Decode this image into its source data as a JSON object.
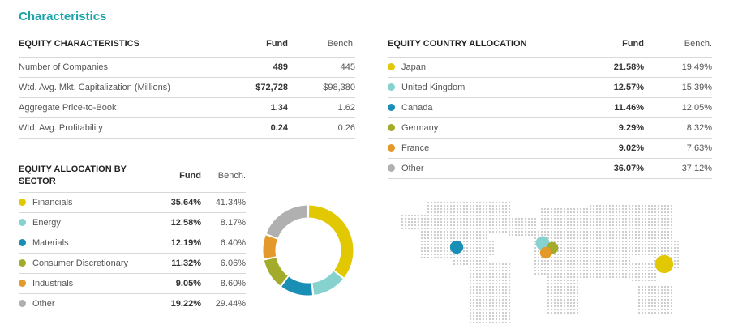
{
  "page_title": "Characteristics",
  "colors": {
    "accent": "#1ba3a8",
    "yellow": "#e2c800",
    "light_teal": "#86d2cf",
    "blue": "#1a8fb6",
    "olive": "#a3ab2b",
    "orange": "#e39a2a",
    "gray": "#b0b0b0"
  },
  "equity_characteristics": {
    "heading": "EQUITY CHARACTERISTICS",
    "col_fund": "Fund",
    "col_bench": "Bench.",
    "rows": [
      {
        "label": "Number of Companies",
        "fund": "489",
        "bench": "445"
      },
      {
        "label": "Wtd. Avg. Mkt. Capitalization (Millions)",
        "fund": "$72,728",
        "bench": "$98,380"
      },
      {
        "label": "Aggregate Price-to-Book",
        "fund": "1.34",
        "bench": "1.62"
      },
      {
        "label": "Wtd. Avg. Profitability",
        "fund": "0.24",
        "bench": "0.26"
      }
    ]
  },
  "equity_country": {
    "heading": "EQUITY COUNTRY ALLOCATION",
    "col_fund": "Fund",
    "col_bench": "Bench.",
    "rows": [
      {
        "label": "Japan",
        "fund": "21.58%",
        "bench": "19.49%",
        "color": "#e2c800"
      },
      {
        "label": "United Kingdom",
        "fund": "12.57%",
        "bench": "15.39%",
        "color": "#86d2cf"
      },
      {
        "label": "Canada",
        "fund": "11.46%",
        "bench": "12.05%",
        "color": "#1a8fb6"
      },
      {
        "label": "Germany",
        "fund": "9.29%",
        "bench": "8.32%",
        "color": "#a3ab2b"
      },
      {
        "label": "France",
        "fund": "9.02%",
        "bench": "7.63%",
        "color": "#e39a2a"
      },
      {
        "label": "Other",
        "fund": "36.07%",
        "bench": "37.12%",
        "color": "#b0b0b0"
      }
    ]
  },
  "equity_sector": {
    "heading_line1": "EQUITY ALLOCATION BY",
    "heading_line2": "SECTOR",
    "col_fund": "Fund",
    "col_bench": "Bench.",
    "rows": [
      {
        "label": "Financials",
        "fund": "35.64%",
        "bench": "41.34%",
        "color": "#e2c800"
      },
      {
        "label": "Energy",
        "fund": "12.58%",
        "bench": "8.17%",
        "color": "#86d2cf"
      },
      {
        "label": "Materials",
        "fund": "12.19%",
        "bench": "6.40%",
        "color": "#1a8fb6"
      },
      {
        "label": "Consumer Discretionary",
        "fund": "11.32%",
        "bench": "6.06%",
        "color": "#a3ab2b"
      },
      {
        "label": "Industrials",
        "fund": "9.05%",
        "bench": "8.60%",
        "color": "#e39a2a"
      },
      {
        "label": "Other",
        "fund": "19.22%",
        "bench": "29.44%",
        "color": "#b0b0b0"
      }
    ]
  },
  "chart_data": [
    {
      "type": "pie",
      "variant": "donut",
      "categories": [
        "Financials",
        "Energy",
        "Materials",
        "Consumer Discretionary",
        "Industrials",
        "Other"
      ],
      "values": [
        35.64,
        12.58,
        12.19,
        11.32,
        9.05,
        19.22
      ],
      "colors": [
        "#e2c800",
        "#86d2cf",
        "#1a8fb6",
        "#a3ab2b",
        "#e39a2a",
        "#b0b0b0"
      ]
    },
    {
      "type": "scatter",
      "variant": "dot-world-map",
      "categories": [
        "Canada",
        "United Kingdom",
        "Germany",
        "France",
        "Japan"
      ],
      "values": [
        11.46,
        12.57,
        9.29,
        9.02,
        21.58
      ],
      "colors": [
        "#1a8fb6",
        "#86d2cf",
        "#a3ab2b",
        "#e39a2a",
        "#e2c800"
      ]
    }
  ]
}
